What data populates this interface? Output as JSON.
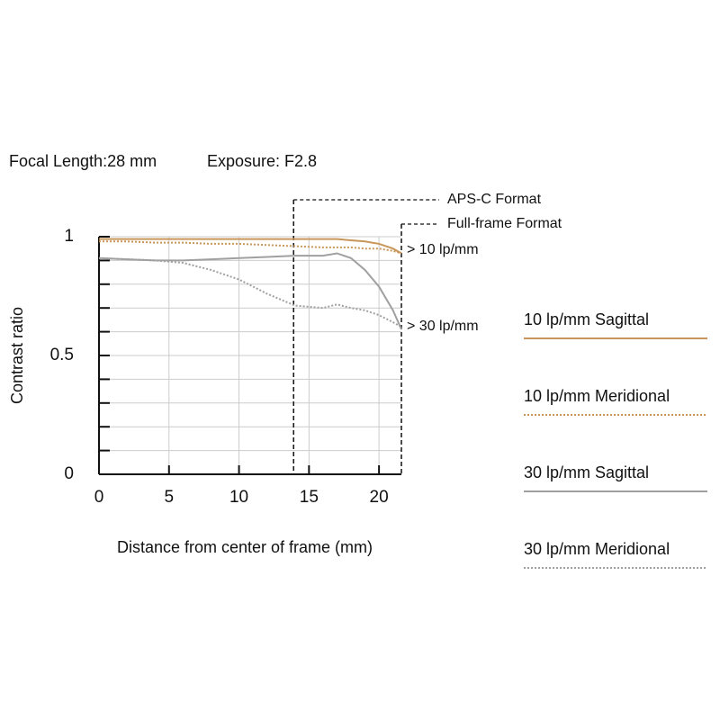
{
  "chart_data": {
    "type": "line",
    "title": "Focal Length:28 mm",
    "subtitle": "Exposure: F2.8",
    "x_label": "Distance from center of frame (mm)",
    "y_label": "Contrast ratio",
    "x": [
      0,
      2,
      4,
      6,
      8,
      10,
      12,
      14,
      16,
      17,
      18,
      19,
      20,
      21,
      21.6
    ],
    "series": [
      {
        "name": "10 lp/mm Sagittal",
        "color": "#c8965a",
        "style": "solid",
        "values": [
          0.99,
          0.99,
          0.99,
          0.99,
          0.99,
          0.99,
          0.99,
          0.99,
          0.99,
          0.99,
          0.985,
          0.98,
          0.97,
          0.95,
          0.93
        ]
      },
      {
        "name": "10 lp/mm Meridional",
        "color": "#c8965a",
        "style": "dotted",
        "values": [
          0.98,
          0.98,
          0.975,
          0.975,
          0.97,
          0.97,
          0.965,
          0.96,
          0.955,
          0.955,
          0.955,
          0.95,
          0.95,
          0.94,
          0.93
        ]
      },
      {
        "name": "30 lp/mm Sagittal",
        "color": "#a0a0a0",
        "style": "solid",
        "values": [
          0.91,
          0.905,
          0.9,
          0.9,
          0.905,
          0.91,
          0.915,
          0.92,
          0.92,
          0.93,
          0.91,
          0.86,
          0.79,
          0.69,
          0.61
        ]
      },
      {
        "name": "30 lp/mm Meridional",
        "color": "#a0a0a0",
        "style": "dotted",
        "values": [
          0.91,
          0.905,
          0.9,
          0.89,
          0.86,
          0.82,
          0.76,
          0.71,
          0.7,
          0.715,
          0.7,
          0.69,
          0.67,
          0.64,
          0.62
        ]
      }
    ],
    "xlim": [
      0,
      21.6
    ],
    "ylim": [
      0,
      1
    ],
    "xticks": [
      0,
      5,
      10,
      15,
      20
    ],
    "yticks": [
      0,
      0.5,
      1
    ],
    "y_minor_ticks": [
      0.1,
      0.2,
      0.3,
      0.4,
      0.6,
      0.7,
      0.8,
      0.9
    ],
    "grid": true,
    "format_lines": [
      {
        "label": "APS-C Format",
        "x": 13.9
      },
      {
        "label": "Full-frame Format",
        "x": 21.6
      }
    ],
    "annotations": [
      "> 10 lp/mm",
      "> 30 lp/mm"
    ]
  }
}
